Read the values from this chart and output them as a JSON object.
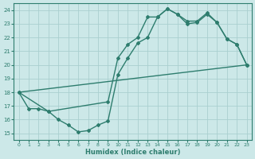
{
  "xlabel": "Humidex (Indice chaleur)",
  "xlim": [
    -0.5,
    23.5
  ],
  "ylim": [
    14.5,
    24.5
  ],
  "xticks": [
    0,
    1,
    2,
    3,
    4,
    5,
    6,
    7,
    8,
    9,
    10,
    11,
    12,
    13,
    14,
    15,
    16,
    17,
    18,
    19,
    20,
    21,
    22,
    23
  ],
  "yticks": [
    15,
    16,
    17,
    18,
    19,
    20,
    21,
    22,
    23,
    24
  ],
  "line_color": "#2e7d6e",
  "bg_color": "#cce8e8",
  "grid_color": "#aacfcf",
  "line1_x": [
    0,
    1,
    2,
    3,
    4,
    5,
    6,
    7,
    8,
    9,
    10,
    11,
    12,
    13,
    14,
    15,
    16,
    17,
    18,
    19,
    20,
    21,
    22,
    23
  ],
  "line1_y": [
    18.0,
    16.8,
    16.8,
    16.6,
    16.0,
    15.6,
    15.1,
    15.2,
    15.6,
    15.9,
    19.3,
    20.5,
    21.6,
    22.0,
    23.5,
    24.1,
    23.7,
    23.2,
    23.2,
    23.8,
    23.1,
    21.9,
    21.5,
    20.0
  ],
  "line2_x": [
    0,
    3,
    9,
    10,
    11,
    12,
    13,
    14,
    15,
    16,
    17,
    18,
    19,
    20,
    21,
    22,
    23
  ],
  "line2_y": [
    18.0,
    16.6,
    17.3,
    20.5,
    21.5,
    22.0,
    23.5,
    23.5,
    24.1,
    23.7,
    23.0,
    23.1,
    23.7,
    23.1,
    21.9,
    21.5,
    20.0
  ],
  "line3_x": [
    0,
    23
  ],
  "line3_y": [
    18.0,
    20.0
  ],
  "linewidth": 1.0
}
